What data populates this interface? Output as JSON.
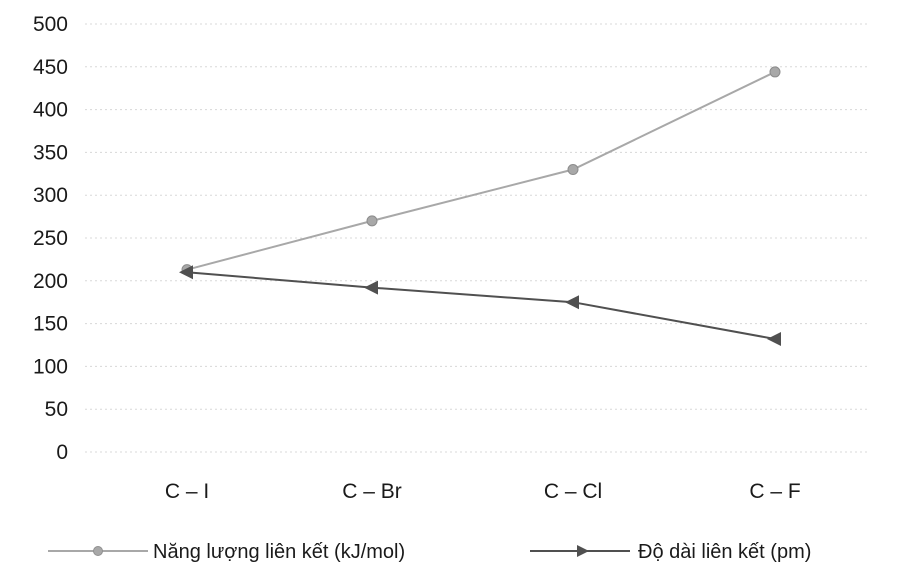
{
  "chart_data": {
    "type": "line",
    "categories": [
      "C – I",
      "C – Br",
      "C – Cl",
      "C – F"
    ],
    "series": [
      {
        "name": "Năng lượng liên kết (kJ/mol)",
        "values": [
          213,
          270,
          330,
          444
        ],
        "color": "#a8a8a8",
        "marker": "circle"
      },
      {
        "name": "Độ dài liên kết (pm)",
        "values": [
          210,
          192,
          175,
          132
        ],
        "color": "#505050",
        "marker": "triangle-left"
      }
    ],
    "ylim": [
      0,
      500
    ],
    "yticks": [
      0,
      50,
      100,
      150,
      200,
      250,
      300,
      350,
      400,
      450,
      500
    ],
    "grid": true,
    "legend": "bottom"
  }
}
